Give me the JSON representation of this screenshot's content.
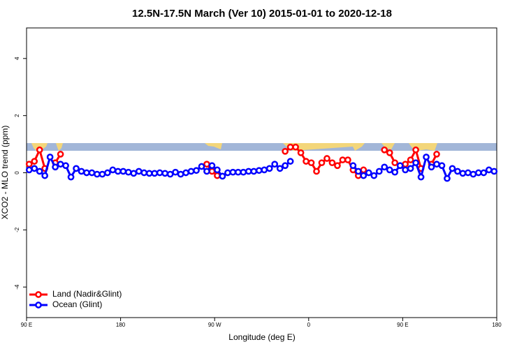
{
  "chart_data": {
    "type": "line",
    "title": "12.5N-17.5N March (Ver 10)   2015-01-01 to 2020-12-18",
    "x_label": "Longitude (deg E)",
    "y_label": "XCO2 - MLO trend (ppm)",
    "xlim": [
      90,
      540
    ],
    "ylim": [
      -5.07,
      5.07
    ],
    "xticks": [
      {
        "value": 90,
        "label": "90 E"
      },
      {
        "value": 180,
        "label": "180"
      },
      {
        "value": 270,
        "label": "90 W"
      },
      {
        "value": 360,
        "label": "0"
      },
      {
        "value": 450,
        "label": "90 E"
      },
      {
        "value": 540,
        "label": "180"
      }
    ],
    "yticks": [
      -4,
      -2,
      0,
      2,
      4
    ],
    "legend": "bottom-left",
    "series": [
      {
        "name": "Land (Nadir&Glint)",
        "color": "#ff0000",
        "x": [
          92.5,
          97.5,
          102.5,
          107.5,
          112.5,
          117.5,
          122.5,
          127.5,
          262.5,
          267.5,
          272.5,
          277.5,
          337.5,
          342.5,
          347.5,
          352.5,
          357.5,
          362.5,
          367.5,
          372.5,
          377.5,
          382.5,
          387.5,
          392.5,
          397.5,
          402.5,
          407.5,
          412.5,
          417.5,
          432.5,
          437.5,
          442.5,
          447.5,
          452.5,
          457.5,
          462.5,
          467.5,
          472.5,
          477.5,
          482.5
        ],
        "values": [
          0.3,
          0.4,
          0.8,
          0.15,
          null,
          0.35,
          0.65,
          null,
          0.3,
          0.05,
          -0.1,
          null,
          0.75,
          0.9,
          0.9,
          0.7,
          0.4,
          0.35,
          0.05,
          0.35,
          0.5,
          0.35,
          0.25,
          0.45,
          0.45,
          0.1,
          -0.1,
          0.1,
          null,
          0.8,
          0.7,
          0.35,
          null,
          0.3,
          0.45,
          0.8,
          0.15,
          null,
          0.3,
          0.65
        ]
      },
      {
        "name": "Ocean (Glint)",
        "color": "#0000ff",
        "x": [
          92.5,
          97.5,
          102.5,
          107.5,
          112.5,
          117.5,
          122.5,
          127.5,
          132.5,
          137.5,
          142.5,
          147.5,
          152.5,
          157.5,
          162.5,
          167.5,
          172.5,
          177.5,
          182.5,
          187.5,
          192.5,
          197.5,
          202.5,
          207.5,
          212.5,
          217.5,
          222.5,
          227.5,
          232.5,
          237.5,
          242.5,
          247.5,
          252.5,
          257.5,
          262.5,
          267.5,
          272.5,
          277.5,
          282.5,
          287.5,
          292.5,
          297.5,
          302.5,
          307.5,
          312.5,
          317.5,
          322.5,
          327.5,
          332.5,
          337.5,
          342.5,
          347.5,
          352.5,
          357.5,
          362.5,
          367.5,
          372.5,
          377.5,
          382.5,
          387.5,
          392.5,
          397.5,
          402.5,
          407.5,
          412.5,
          417.5,
          422.5,
          427.5,
          432.5,
          437.5,
          442.5,
          447.5,
          452.5,
          457.5,
          462.5,
          467.5,
          472.5,
          477.5,
          482.5,
          487.5,
          492.5,
          497.5,
          502.5,
          507.5,
          512.5,
          517.5,
          522.5,
          527.5,
          532.5,
          537.5
        ],
        "values": [
          0.1,
          0.15,
          0.05,
          -0.1,
          0.55,
          0.2,
          0.3,
          0.25,
          -0.15,
          0.15,
          0.05,
          0,
          0,
          -0.05,
          -0.05,
          0,
          0.1,
          0.05,
          0.05,
          0.02,
          -0.02,
          0.05,
          0,
          -0.02,
          -0.02,
          0,
          -0.02,
          -0.05,
          0.02,
          -0.05,
          0,
          0.05,
          0.08,
          0.22,
          0.05,
          0.25,
          0.1,
          -0.12,
          0,
          0.02,
          0.02,
          0.02,
          0.05,
          0.05,
          0.08,
          0.1,
          0.15,
          0.3,
          0.15,
          0.25,
          0.4,
          null,
          null,
          null,
          null,
          null,
          null,
          null,
          null,
          null,
          null,
          null,
          0.25,
          0.05,
          -0.1,
          0,
          -0.1,
          0.05,
          0.2,
          0.1,
          0.02,
          0.25,
          0.1,
          0.15,
          0.35,
          -0.15,
          0.55,
          0.2,
          0.3,
          0.25,
          -0.2,
          0.15,
          0.05,
          -0.02,
          0,
          -0.05,
          0,
          0,
          0.1,
          0.05
        ]
      }
    ]
  }
}
